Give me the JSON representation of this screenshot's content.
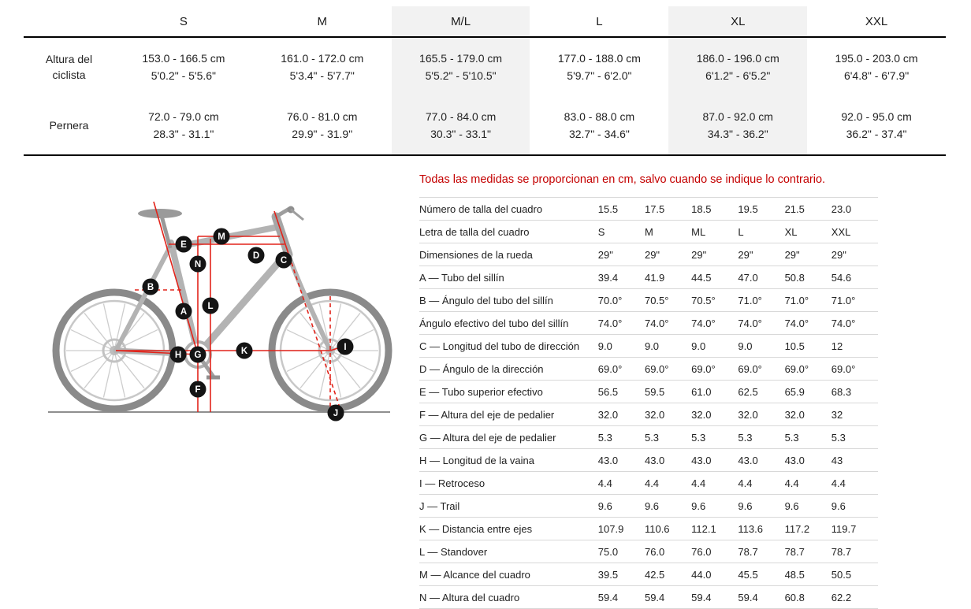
{
  "colors": {
    "note_red": "#c40000",
    "diagram_red": "#e2231a",
    "shaded_column": "#f2f2f2",
    "table_border_dark": "#000000",
    "table_border_light": "#d8d8d8"
  },
  "chart_data": [
    {
      "type": "table",
      "columns": [
        "S",
        "M",
        "M/L",
        "L",
        "XL",
        "XXL"
      ],
      "highlighted_columns": [
        "M/L",
        "XL"
      ],
      "rows": [
        {
          "label": "Altura del ciclista",
          "values": [
            "153.0 - 166.5 cm\n5'0.2\" - 5'5.6\"",
            "161.0 - 172.0 cm\n5'3.4\" - 5'7.7\"",
            "165.5 - 179.0 cm\n5'5.2\" - 5'10.5\"",
            "177.0 - 188.0 cm\n5'9.7\" - 6'2.0\"",
            "186.0 - 196.0 cm\n6'1.2\" - 6'5.2\"",
            "195.0 - 203.0 cm\n6'4.8\" - 6'7.9\""
          ]
        },
        {
          "label": "Pernera",
          "values": [
            "72.0 - 79.0 cm\n28.3\" - 31.1\"",
            "76.0 - 81.0 cm\n29.9\" - 31.9\"",
            "77.0 - 84.0 cm\n30.3\" - 33.1\"",
            "83.0 - 88.0 cm\n32.7\" - 34.6\"",
            "87.0 - 92.0 cm\n34.3\" - 36.2\"",
            "92.0 - 95.0 cm\n36.2\" - 37.4\""
          ]
        }
      ]
    },
    {
      "type": "table",
      "note": "Todas las medidas se proporcionan en cm, salvo cuando se indique lo contrario.",
      "rows": [
        {
          "label": "Número de talla del cuadro",
          "values": [
            "15.5",
            "17.5",
            "18.5",
            "19.5",
            "21.5",
            "23.0"
          ]
        },
        {
          "label": "Letra de talla del cuadro",
          "values": [
            "S",
            "M",
            "ML",
            "L",
            "XL",
            "XXL"
          ]
        },
        {
          "label": "Dimensiones de la rueda",
          "values": [
            "29\"",
            "29\"",
            "29\"",
            "29\"",
            "29\"",
            "29\""
          ]
        },
        {
          "label": "A — Tubo del sillín",
          "values": [
            "39.4",
            "41.9",
            "44.5",
            "47.0",
            "50.8",
            "54.6"
          ]
        },
        {
          "label": "B — Ángulo del tubo del sillín",
          "values": [
            "70.0°",
            "70.5°",
            "70.5°",
            "71.0°",
            "71.0°",
            "71.0°"
          ]
        },
        {
          "label": "Ángulo efectivo del tubo del sillín",
          "values": [
            "74.0°",
            "74.0°",
            "74.0°",
            "74.0°",
            "74.0°",
            "74.0°"
          ]
        },
        {
          "label": "C — Longitud del tubo de dirección",
          "values": [
            "9.0",
            "9.0",
            "9.0",
            "9.0",
            "10.5",
            "12"
          ]
        },
        {
          "label": "D — Ángulo de la dirección",
          "values": [
            "69.0°",
            "69.0°",
            "69.0°",
            "69.0°",
            "69.0°",
            "69.0°"
          ]
        },
        {
          "label": "E — Tubo superior efectivo",
          "values": [
            "56.5",
            "59.5",
            "61.0",
            "62.5",
            "65.9",
            "68.3"
          ]
        },
        {
          "label": "F — Altura del eje de pedalier",
          "values": [
            "32.0",
            "32.0",
            "32.0",
            "32.0",
            "32.0",
            "32"
          ]
        },
        {
          "label": "G — Altura del eje de pedalier",
          "values": [
            "5.3",
            "5.3",
            "5.3",
            "5.3",
            "5.3",
            "5.3"
          ]
        },
        {
          "label": "H — Longitud de la vaina",
          "values": [
            "43.0",
            "43.0",
            "43.0",
            "43.0",
            "43.0",
            "43"
          ]
        },
        {
          "label": "I — Retroceso",
          "values": [
            "4.4",
            "4.4",
            "4.4",
            "4.4",
            "4.4",
            "4.4"
          ]
        },
        {
          "label": "J — Trail",
          "values": [
            "9.6",
            "9.6",
            "9.6",
            "9.6",
            "9.6",
            "9.6"
          ]
        },
        {
          "label": "K — Distancia entre ejes",
          "values": [
            "107.9",
            "110.6",
            "112.1",
            "113.6",
            "117.2",
            "119.7"
          ]
        },
        {
          "label": "L — Standover",
          "values": [
            "75.0",
            "76.0",
            "76.0",
            "78.7",
            "78.7",
            "78.7"
          ]
        },
        {
          "label": "M — Alcance del cuadro",
          "values": [
            "39.5",
            "42.5",
            "44.0",
            "45.5",
            "48.5",
            "50.5"
          ]
        },
        {
          "label": "N — Altura del cuadro",
          "values": [
            "59.4",
            "59.4",
            "59.4",
            "59.4",
            "60.8",
            "62.2"
          ]
        }
      ]
    }
  ],
  "diagram": {
    "letters": [
      "E",
      "M",
      "N",
      "D",
      "C",
      "B",
      "A",
      "L",
      "H",
      "G",
      "K",
      "I",
      "F",
      "J"
    ]
  }
}
